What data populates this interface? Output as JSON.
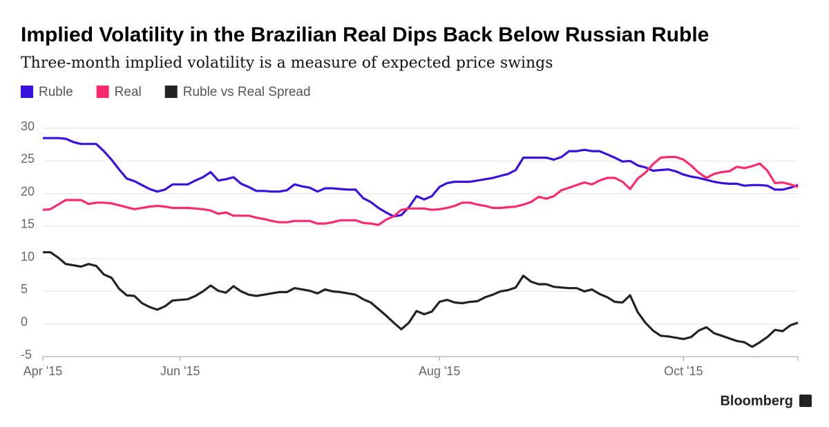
{
  "chart_data": {
    "type": "line",
    "title": "Implied Volatility in the Brazilian Real Dips Back Below Russian Ruble",
    "subtitle": "Three-month implied volatility is a measure of expected price swings",
    "source": "Bloomberg",
    "categories": [
      "Apr '15",
      null,
      null,
      null,
      null,
      null,
      null,
      null,
      null,
      null,
      null,
      null,
      null,
      null,
      null,
      null,
      null,
      null,
      "Jun '15",
      null,
      null,
      null,
      null,
      null,
      null,
      null,
      null,
      null,
      null,
      null,
      null,
      null,
      null,
      null,
      null,
      null,
      null,
      null,
      null,
      null,
      null,
      null,
      null,
      null,
      null,
      null,
      null,
      null,
      null,
      null,
      null,
      null,
      "Aug '15",
      null,
      null,
      null,
      null,
      null,
      null,
      null,
      null,
      null,
      null,
      null,
      null,
      null,
      null,
      null,
      null,
      null,
      null,
      null,
      null,
      null,
      null,
      null,
      null,
      null,
      null,
      null,
      null,
      null,
      null,
      null,
      "Oct '15",
      null,
      null,
      null,
      null,
      null,
      null,
      null,
      null,
      null,
      null,
      null,
      null,
      null,
      null,
      null
    ],
    "series": [
      {
        "name": "Ruble",
        "color": "#3a10dc",
        "values": [
          28.5,
          28.5,
          28.5,
          28.4,
          27.9,
          27.6,
          27.6,
          27.6,
          26.5,
          25.2,
          23.7,
          22.3,
          21.9,
          21.3,
          20.7,
          20.3,
          20.6,
          21.4,
          21.4,
          21.4,
          22,
          22.5,
          23.3,
          22,
          22.2,
          22.5,
          21.5,
          21,
          20.4,
          20.4,
          20.3,
          20.3,
          20.5,
          21.4,
          21.1,
          20.9,
          20.3,
          20.8,
          20.8,
          20.7,
          20.6,
          20.6,
          19.3,
          18.7,
          17.8,
          17.1,
          16.5,
          16.7,
          17.9,
          19.6,
          19.1,
          19.6,
          21,
          21.6,
          21.8,
          21.8,
          21.8,
          22,
          22.2,
          22.4,
          22.7,
          23,
          23.6,
          25.5,
          25.5,
          25.5,
          25.5,
          25.2,
          25.6,
          26.5,
          26.5,
          26.7,
          26.5,
          26.5,
          26,
          25.5,
          24.9,
          25,
          24.3,
          24,
          23.5,
          23.6,
          23.7,
          23.4,
          22.9,
          22.6,
          22.4,
          22.1,
          21.8,
          21.6,
          21.5,
          21.5,
          21.2,
          21.3,
          21.3,
          21.2,
          20.6,
          20.6,
          20.9,
          21.3
        ]
      },
      {
        "name": "Real",
        "color": "#ff2a6d",
        "values": [
          17.5,
          17.6,
          18.3,
          19,
          19,
          19,
          18.4,
          18.6,
          18.6,
          18.5,
          18.2,
          17.9,
          17.6,
          17.8,
          18,
          18.1,
          18,
          17.8,
          17.8,
          17.8,
          17.7,
          17.6,
          17.4,
          16.9,
          17.1,
          16.6,
          16.6,
          16.6,
          16.3,
          16.1,
          15.8,
          15.6,
          15.6,
          15.8,
          15.8,
          15.8,
          15.4,
          15.4,
          15.6,
          15.9,
          15.9,
          15.9,
          15.5,
          15.4,
          15.2,
          16,
          16.5,
          17.5,
          17.7,
          17.7,
          17.7,
          17.5,
          17.6,
          17.8,
          18.1,
          18.6,
          18.6,
          18.3,
          18.1,
          17.8,
          17.8,
          17.9,
          18,
          18.3,
          18.7,
          19.5,
          19.2,
          19.6,
          20.5,
          20.9,
          21.3,
          21.7,
          21.4,
          22,
          22.4,
          22.4,
          21.8,
          20.7,
          22.3,
          23.2,
          24.5,
          25.5,
          25.6,
          25.6,
          25.2,
          24.3,
          23.2,
          22.4,
          23,
          23.3,
          23.4,
          24.1,
          23.9,
          24.2,
          24.6,
          23.5,
          21.6,
          21.7,
          21.4,
          21
        ]
      },
      {
        "name": "Ruble vs Real Spread",
        "color": "#222222",
        "values": [
          11,
          11,
          10.2,
          9.2,
          9,
          8.8,
          9.2,
          8.9,
          7.6,
          7.1,
          5.4,
          4.4,
          4.3,
          3.2,
          2.6,
          2.2,
          2.7,
          3.6,
          3.7,
          3.8,
          4.3,
          5,
          5.9,
          5.1,
          4.8,
          5.8,
          5,
          4.5,
          4.3,
          4.5,
          4.7,
          4.9,
          4.9,
          5.5,
          5.3,
          5.1,
          4.7,
          5.3,
          5,
          4.9,
          4.7,
          4.5,
          3.8,
          3.3,
          2.3,
          1.3,
          0.2,
          -0.8,
          0.2,
          2,
          1.5,
          1.9,
          3.4,
          3.7,
          3.3,
          3.2,
          3.4,
          3.5,
          4.1,
          4.5,
          5,
          5.2,
          5.6,
          7.4,
          6.5,
          6.1,
          6.1,
          5.7,
          5.6,
          5.5,
          5.5,
          5,
          5.3,
          4.6,
          4.1,
          3.4,
          3.3,
          4.4,
          1.8,
          0.2,
          -1,
          -1.8,
          -1.9,
          -2.1,
          -2.3,
          -2,
          -1,
          -0.5,
          -1.4,
          -1.8,
          -2.2,
          -2.6,
          -2.8,
          -3.5,
          -2.8,
          -2,
          -0.9,
          -1.1,
          -0.2,
          0.2
        ]
      }
    ],
    "ylim": [
      -5,
      30
    ],
    "yticks": [
      -5,
      0,
      5,
      10,
      15,
      20,
      25,
      30
    ],
    "grid": true
  }
}
